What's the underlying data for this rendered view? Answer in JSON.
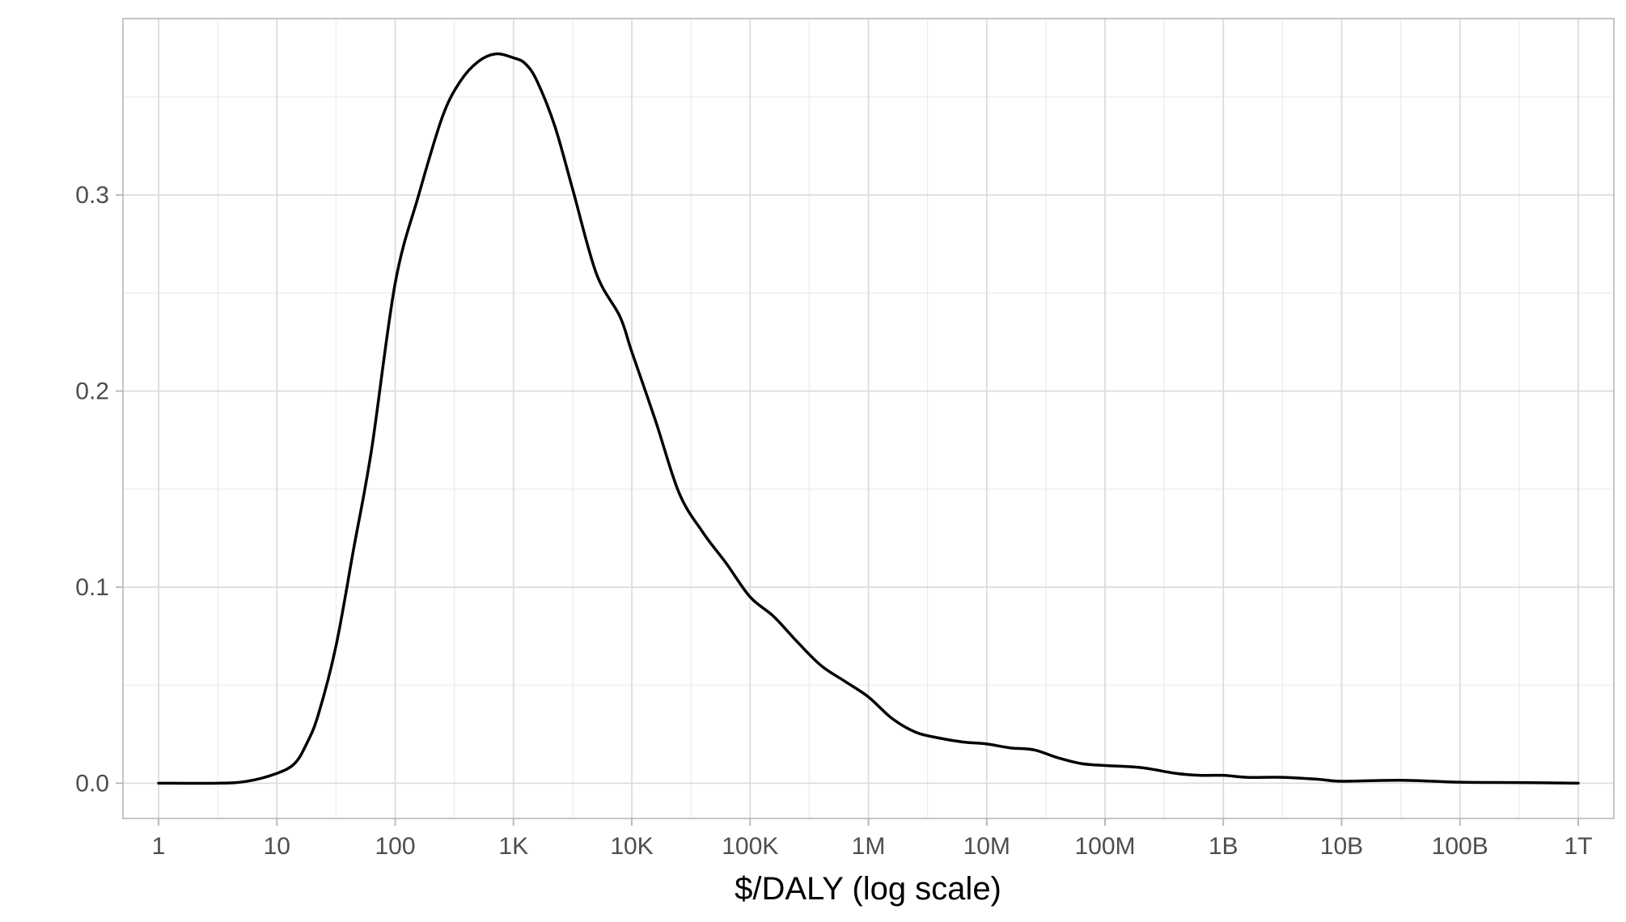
{
  "chart_data": {
    "type": "line",
    "title": "",
    "xlabel": "$/DALY (log scale)",
    "ylabel": "",
    "x_scale": "log10",
    "xlim": [
      0.5,
      2000000000000
    ],
    "ylim": [
      -0.018,
      0.39
    ],
    "x_ticks": [
      {
        "value": 1,
        "label": "1"
      },
      {
        "value": 10,
        "label": "10"
      },
      {
        "value": 100,
        "label": "100"
      },
      {
        "value": 1000,
        "label": "1K"
      },
      {
        "value": 10000,
        "label": "10K"
      },
      {
        "value": 100000,
        "label": "100K"
      },
      {
        "value": 1000000,
        "label": "1M"
      },
      {
        "value": 10000000,
        "label": "10M"
      },
      {
        "value": 100000000,
        "label": "100M"
      },
      {
        "value": 1000000000,
        "label": "1B"
      },
      {
        "value": 10000000000,
        "label": "10B"
      },
      {
        "value": 100000000000,
        "label": "100B"
      },
      {
        "value": 1000000000000,
        "label": "1T"
      }
    ],
    "y_ticks": [
      {
        "value": 0.0,
        "label": "0.0"
      },
      {
        "value": 0.1,
        "label": "0.1"
      },
      {
        "value": 0.2,
        "label": "0.2"
      },
      {
        "value": 0.3,
        "label": "0.3"
      }
    ],
    "y_minor": [
      0.05,
      0.15,
      0.25,
      0.35
    ],
    "grid": true,
    "legend": "none",
    "colors": {
      "line": "#000000",
      "grid": "#ebebeb",
      "panel_border": "#b3b3b3",
      "tick_text": "#4d4d4d"
    },
    "series": [
      {
        "x": [
          1,
          3.16,
          5.62,
          10,
          14.1,
          17.8,
          22.4,
          31.6,
          44.7,
          63.1,
          100,
          158,
          251,
          355,
          501,
          708,
          1000,
          1259,
          1585,
          2239,
          3162,
          5012,
          7943,
          10000,
          15849,
          25119,
          39811,
          63096,
          100000,
          158489,
          251189,
          398107,
          630957,
          1000000,
          1584893,
          2511886,
          3981072,
          6309573,
          10000000,
          15848932,
          25118864,
          39810717,
          63095734,
          100000000,
          199526231,
          398107171,
          630957344,
          1000000000,
          1584893192,
          3162277660,
          6309573445,
          10000000000,
          31622776602,
          100000000000,
          316227766017,
          1000000000000
        ],
        "y": [
          0.0,
          0.0,
          0.001,
          0.005,
          0.01,
          0.02,
          0.035,
          0.07,
          0.12,
          0.17,
          0.255,
          0.3,
          0.34,
          0.358,
          0.368,
          0.372,
          0.37,
          0.367,
          0.358,
          0.335,
          0.303,
          0.26,
          0.238,
          0.22,
          0.185,
          0.148,
          0.128,
          0.112,
          0.095,
          0.085,
          0.072,
          0.06,
          0.052,
          0.044,
          0.033,
          0.026,
          0.023,
          0.021,
          0.02,
          0.018,
          0.017,
          0.013,
          0.01,
          0.009,
          0.008,
          0.005,
          0.004,
          0.004,
          0.003,
          0.003,
          0.002,
          0.001,
          0.0015,
          0.0005,
          0.0003,
          0.0
        ]
      }
    ]
  }
}
